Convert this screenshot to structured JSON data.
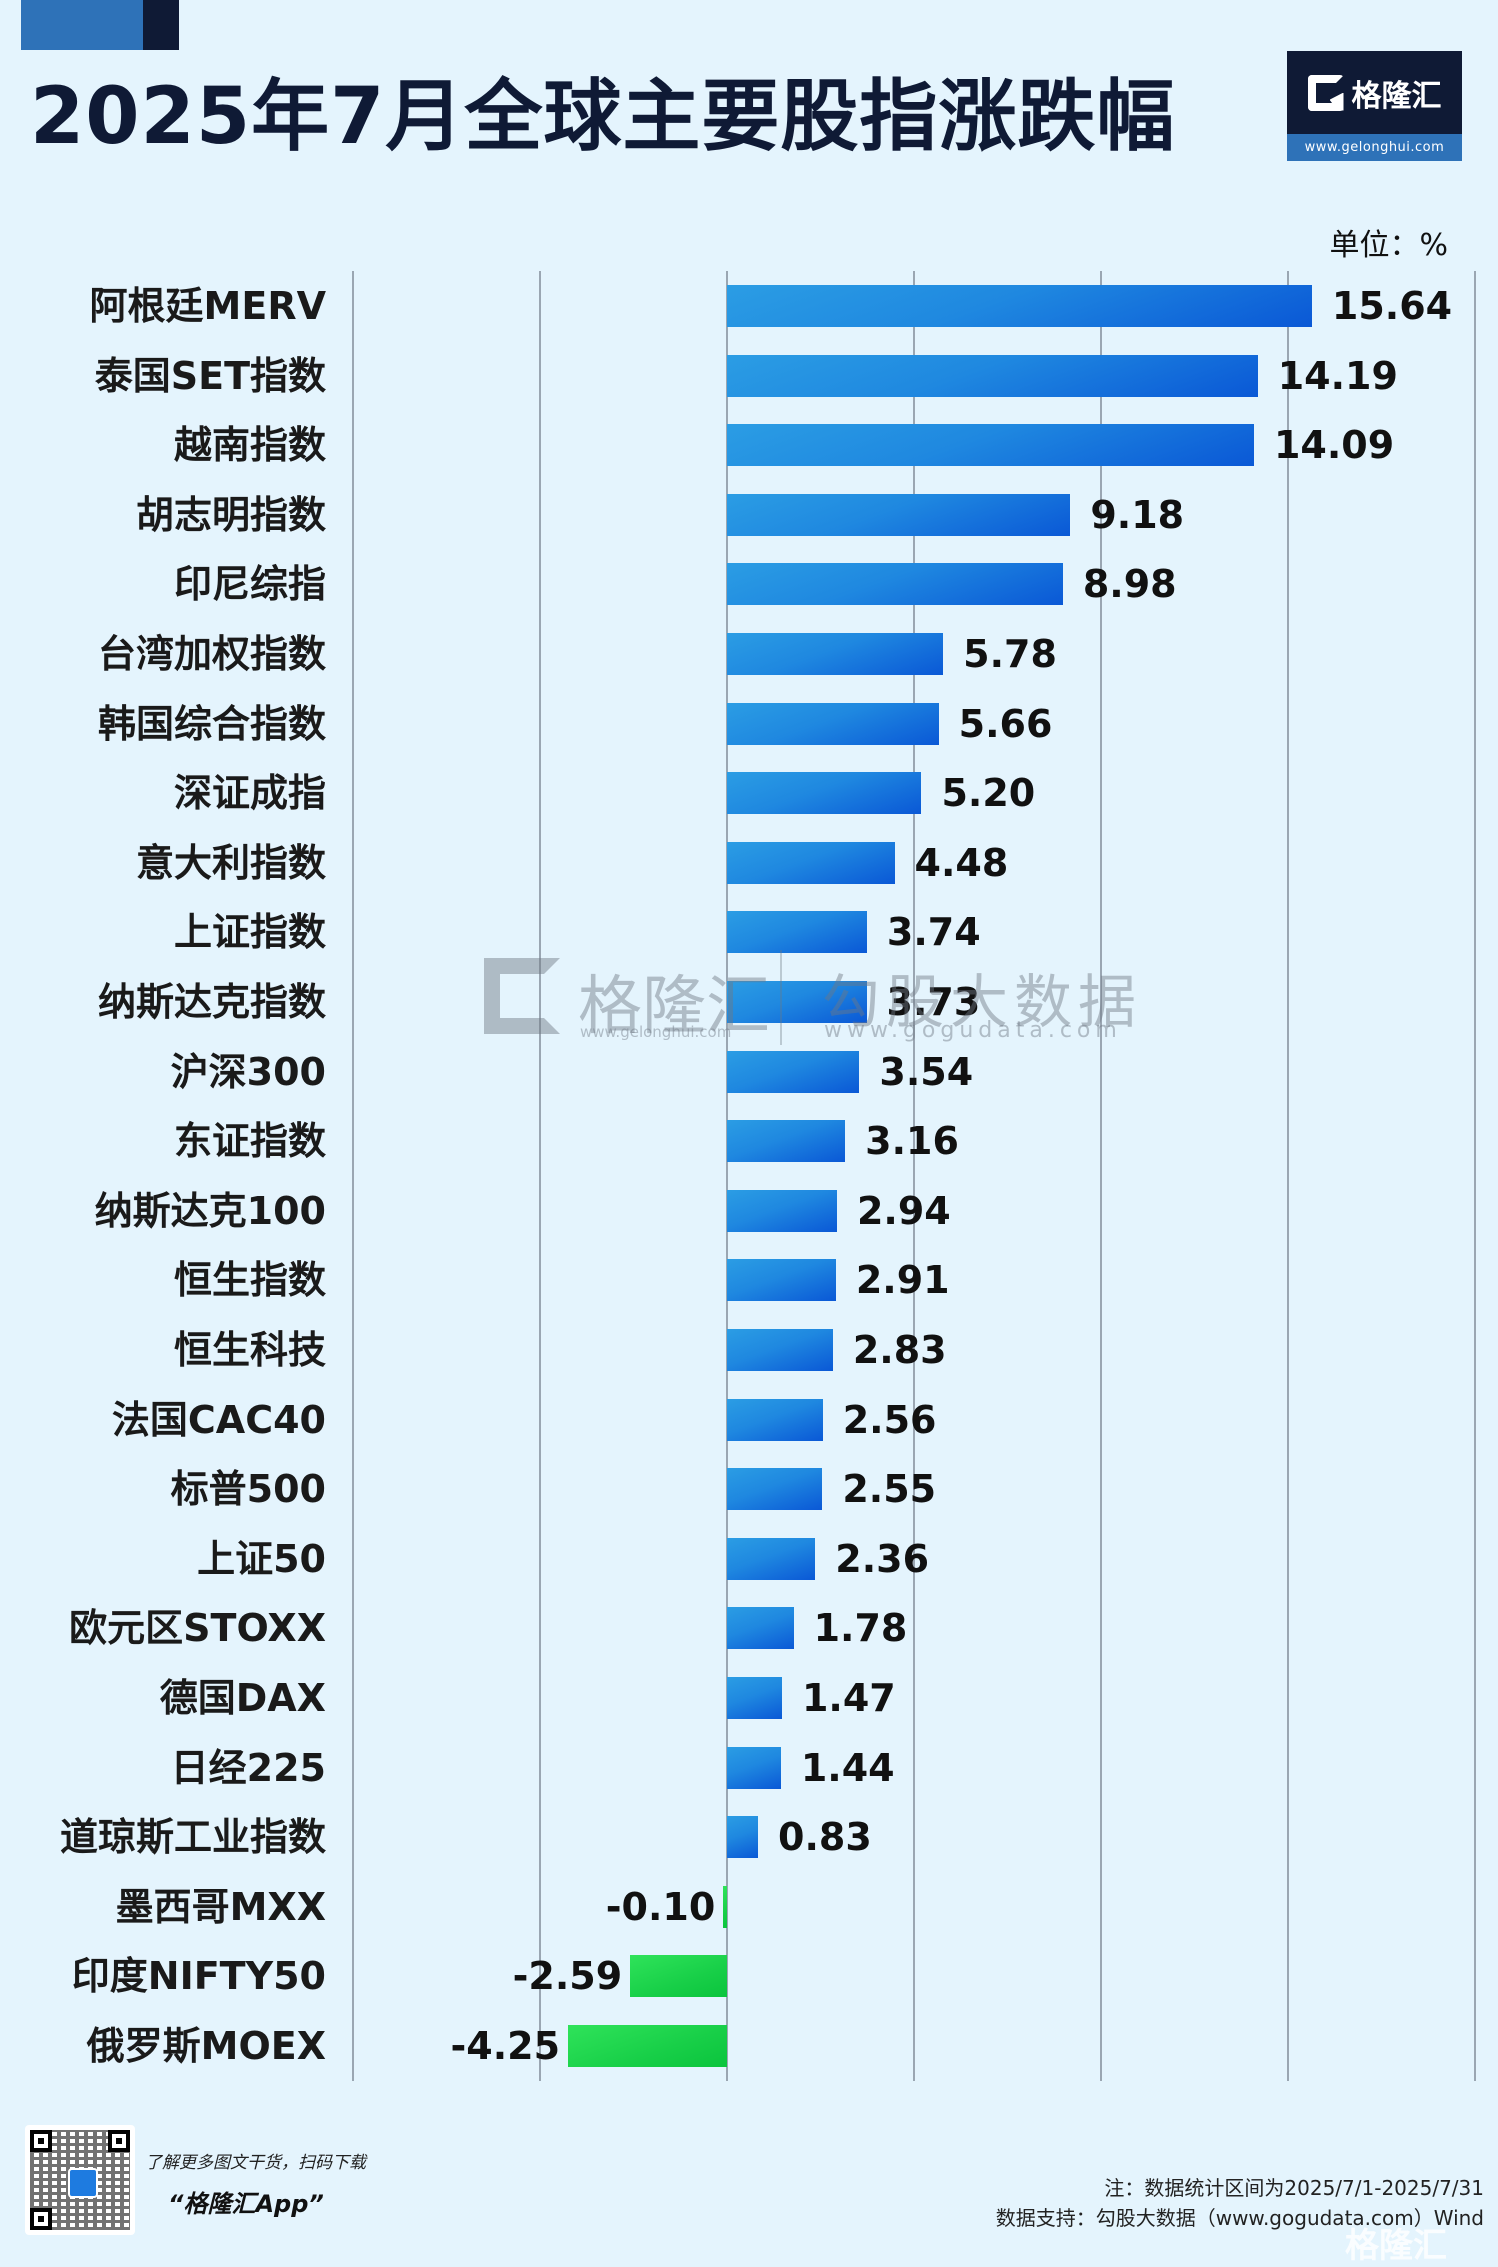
{
  "header": {
    "title": "2025年7月全球主要股指涨跌幅",
    "logo_name": "格隆汇",
    "logo_url": "www.gelonghui.com",
    "unit": "单位：%"
  },
  "colors": {
    "background": "#e4f4fd",
    "title": "#0f1a35",
    "positive_bar": "#1f88e0",
    "negative_bar": "#18cf48",
    "gridline": "#9aa6b2"
  },
  "watermark": {
    "left_name": "格隆汇",
    "left_url": "www.gelonghui.com",
    "right_name": "勾股大数据",
    "right_url": "www.gogudata.com"
  },
  "chart_data": {
    "type": "bar",
    "orientation": "horizontal",
    "title": "2025年7月全球主要股指涨跌幅",
    "unit": "%",
    "xlabel": "",
    "ylabel": "",
    "xlim": [
      -10,
      20
    ],
    "grid": true,
    "gridlines_at": [
      -10,
      -5,
      0,
      5,
      10,
      15,
      20
    ],
    "legend": null,
    "categories": [
      "阿根廷MERV",
      "泰国SET指数",
      "越南指数",
      "胡志明指数",
      "印尼综指",
      "台湾加权指数",
      "韩国综合指数",
      "深证成指",
      "意大利指数",
      "上证指数",
      "纳斯达克指数",
      "沪深300",
      "东证指数",
      "纳斯达克100",
      "恒生指数",
      "恒生科技",
      "法国CAC40",
      "标普500",
      "上证50",
      "欧元区STOXX",
      "德国DAX",
      "日经225",
      "道琼斯工业指数",
      "墨西哥MXX",
      "印度NIFTY50",
      "俄罗斯MOEX"
    ],
    "values": [
      15.64,
      14.19,
      14.09,
      9.18,
      8.98,
      5.78,
      5.66,
      5.2,
      4.48,
      3.74,
      3.73,
      3.54,
      3.16,
      2.94,
      2.91,
      2.83,
      2.56,
      2.55,
      2.36,
      1.78,
      1.47,
      1.44,
      0.83,
      -0.1,
      -2.59,
      -4.25
    ],
    "labels": [
      "15.64",
      "14.19",
      "14.09",
      "9.18",
      "8.98",
      "5.78",
      "5.66",
      "5.20",
      "4.48",
      "3.74",
      "3.73",
      "3.54",
      "3.16",
      "2.94",
      "2.91",
      "2.83",
      "2.56",
      "2.55",
      "2.36",
      "1.78",
      "1.47",
      "1.44",
      "0.83",
      "-0.10",
      "-2.59",
      "-4.25"
    ]
  },
  "footer": {
    "promo_line1": "了解更多图文干货，扫码下载",
    "promo_line2": "“格隆汇App”",
    "note": "注：数据统计区间为2025/7/1-2025/7/31",
    "source": "数据支持：勾股大数据（www.gogudata.com）Wind",
    "corner_watermark": "格隆汇"
  }
}
